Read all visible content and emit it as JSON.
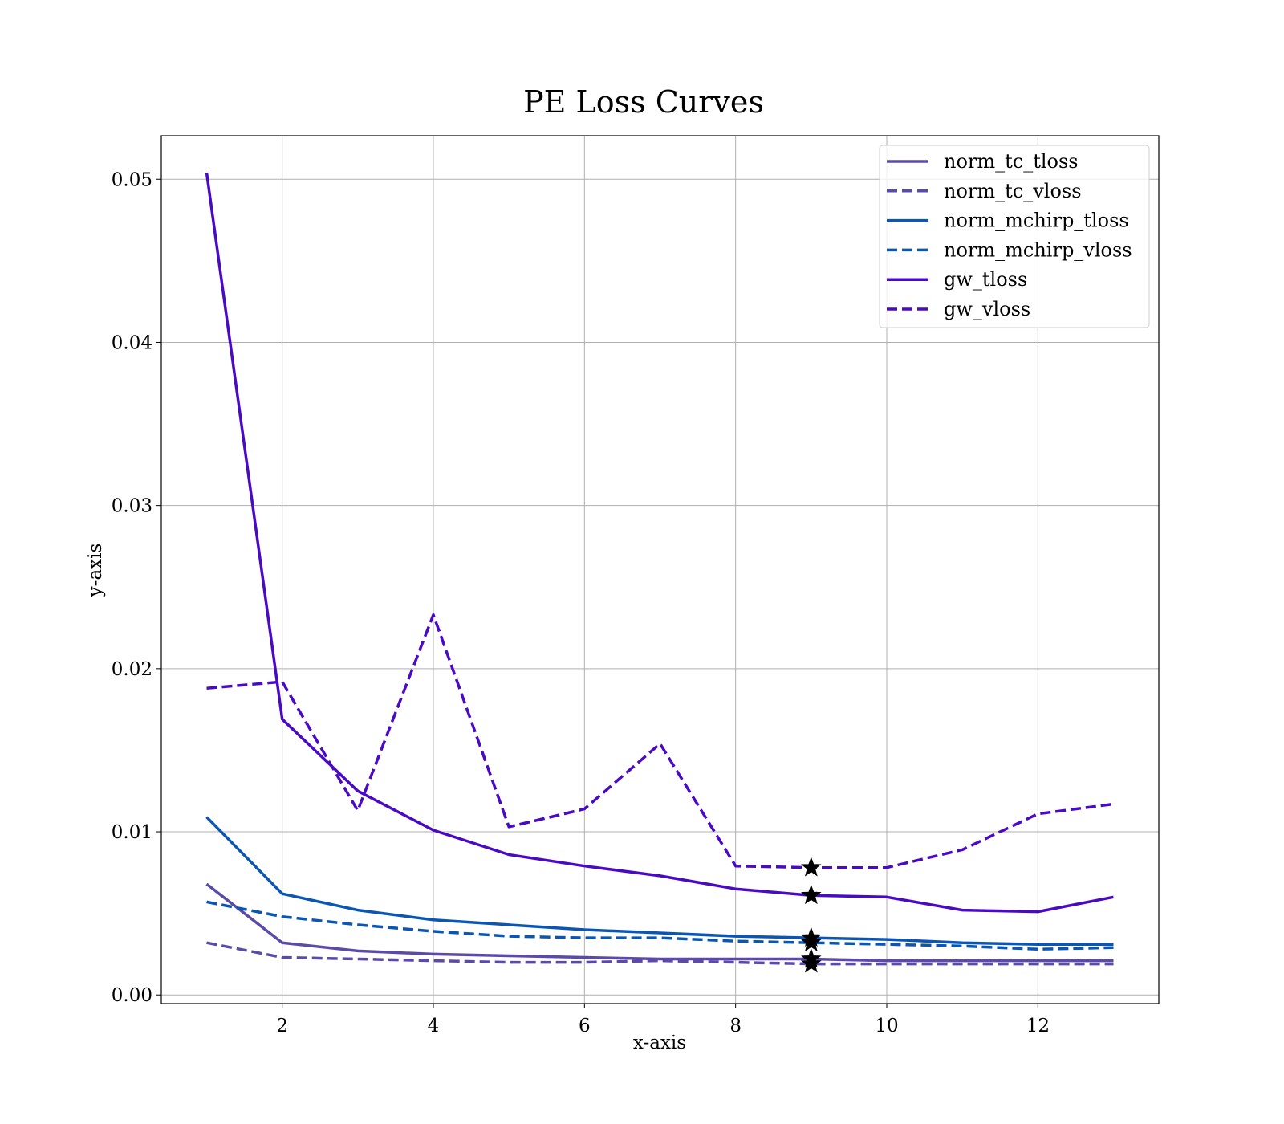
{
  "chart_data": {
    "type": "line",
    "title": "PE Loss Curves",
    "xlabel": "x-axis",
    "ylabel": "y-axis",
    "xlim": [
      0.4,
      13.6
    ],
    "ylim": [
      -0.00053,
      0.05267
    ],
    "xticks": [
      2,
      4,
      6,
      8,
      10,
      12
    ],
    "yticks": [
      0.0,
      0.01,
      0.02,
      0.03,
      0.04,
      0.05
    ],
    "xtick_labels": [
      "2",
      "4",
      "6",
      "8",
      "10",
      "12"
    ],
    "ytick_labels": [
      "0.00",
      "0.01",
      "0.02",
      "0.03",
      "0.04",
      "0.05"
    ],
    "grid": true,
    "legend_position": "top-right",
    "x": [
      1,
      2,
      3,
      4,
      5,
      6,
      7,
      8,
      9,
      10,
      11,
      12,
      13
    ],
    "series": [
      {
        "name": "norm_tc_tloss",
        "color": "#5c4aa8",
        "dashed": false,
        "values": [
          0.0068,
          0.0032,
          0.0027,
          0.0025,
          0.0024,
          0.0023,
          0.0022,
          0.0022,
          0.0022,
          0.0021,
          0.0021,
          0.0021,
          0.0021
        ]
      },
      {
        "name": "norm_tc_vloss",
        "color": "#5c4aa8",
        "dashed": true,
        "values": [
          0.0032,
          0.0023,
          0.0022,
          0.0021,
          0.002,
          0.002,
          0.0021,
          0.002,
          0.0019,
          0.0019,
          0.0019,
          0.0019,
          0.0019
        ]
      },
      {
        "name": "norm_mchirp_tloss",
        "color": "#0b55b3",
        "dashed": false,
        "values": [
          0.0109,
          0.0062,
          0.0052,
          0.0046,
          0.0043,
          0.004,
          0.0038,
          0.0036,
          0.0035,
          0.0034,
          0.0032,
          0.0031,
          0.0031
        ]
      },
      {
        "name": "norm_mchirp_vloss",
        "color": "#0b55b3",
        "dashed": true,
        "values": [
          0.0057,
          0.0048,
          0.0043,
          0.0039,
          0.0036,
          0.0035,
          0.0035,
          0.0033,
          0.0032,
          0.0031,
          0.003,
          0.0028,
          0.0029
        ]
      },
      {
        "name": "gw_tloss",
        "color": "#4a0ac4",
        "dashed": false,
        "values": [
          0.0504,
          0.0169,
          0.0125,
          0.0101,
          0.0086,
          0.0079,
          0.0073,
          0.0065,
          0.0061,
          0.006,
          0.0052,
          0.0051,
          0.006
        ]
      },
      {
        "name": "gw_vloss",
        "color": "#4a0ac4",
        "dashed": true,
        "values": [
          0.0188,
          0.0192,
          0.0113,
          0.0233,
          0.0103,
          0.0114,
          0.0154,
          0.0079,
          0.0078,
          0.0078,
          0.0089,
          0.0111,
          0.0117
        ]
      }
    ],
    "markers": {
      "symbol": "star",
      "color": "#000000",
      "points": [
        {
          "x": 9,
          "y": 0.0078
        },
        {
          "x": 9,
          "y": 0.0061
        },
        {
          "x": 9,
          "y": 0.0035
        },
        {
          "x": 9,
          "y": 0.0032
        },
        {
          "x": 9,
          "y": 0.0022
        },
        {
          "x": 9,
          "y": 0.0019
        }
      ]
    }
  }
}
